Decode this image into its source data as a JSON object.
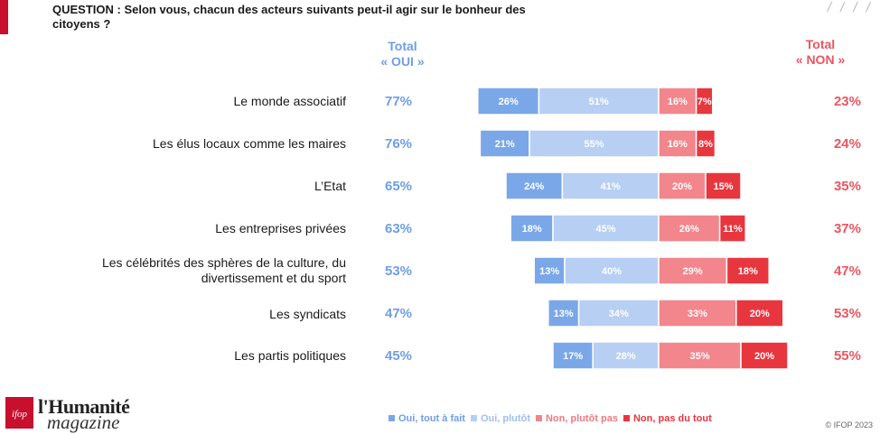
{
  "header": {
    "question": "QUESTION : Selon vous, chacun des acteurs suivants peut-il agir sur le bonheur des citoyens ?",
    "total_oui_line1": "Total",
    "total_oui_line2": "« OUI »",
    "total_non_line1": "Total",
    "total_non_line2": "« NON »",
    "decor": "/ / / /"
  },
  "colors": {
    "oui_tout_a_fait": "#7aa7e8",
    "oui_plutot": "#b7cff3",
    "non_plutot_pas": "#f2868c",
    "non_pas_du_tout": "#e8363f",
    "total_oui": "#6f9ee6",
    "total_non": "#ec5560",
    "brand_red": "#c8102e"
  },
  "chart_data": {
    "type": "bar",
    "orientation": "horizontal-diverging",
    "categories": [
      "Le monde associatif",
      "Les élus locaux comme les maires",
      "L’Etat",
      "Les entreprises privées",
      "Les célébrités des sphères de la culture, du divertissement et du sport",
      "Les syndicats",
      "Les partis politiques"
    ],
    "series": [
      {
        "name": "Oui, tout à fait",
        "values": [
          26,
          21,
          24,
          18,
          13,
          13,
          17
        ],
        "labels": [
          "26%",
          "21%",
          "24%",
          "18%",
          "13%",
          "13%",
          "17%"
        ]
      },
      {
        "name": "Oui, plutôt",
        "values": [
          51,
          55,
          41,
          45,
          40,
          34,
          28
        ],
        "labels": [
          "51%",
          "55%",
          "41%",
          "45%",
          "40%",
          "34%",
          "28%"
        ]
      },
      {
        "name": "Non, plutôt pas",
        "values": [
          16,
          16,
          20,
          26,
          29,
          33,
          35
        ],
        "labels": [
          "16%",
          "16%",
          "20%",
          "26%",
          "29%",
          "33%",
          "35%"
        ]
      },
      {
        "name": "Non, pas du tout",
        "values": [
          7,
          8,
          15,
          11,
          18,
          20,
          20
        ],
        "labels": [
          "7%",
          "8%",
          "15%",
          "11%",
          "18%",
          "20%",
          "20%"
        ]
      }
    ],
    "total_oui": [
      "77%",
      "76%",
      "65%",
      "63%",
      "53%",
      "47%",
      "45%"
    ],
    "total_non": [
      "23%",
      "24%",
      "35%",
      "37%",
      "47%",
      "53%",
      "55%"
    ],
    "legend_position": "bottom"
  },
  "rows": [
    {
      "label": "Le monde associatif",
      "oui": "77%",
      "non": "23%"
    },
    {
      "label": "Les élus locaux comme les maires",
      "oui": "76%",
      "non": "24%"
    },
    {
      "label": "L’Etat",
      "oui": "65%",
      "non": "35%"
    },
    {
      "label": "Les entreprises privées",
      "oui": "63%",
      "non": "37%"
    },
    {
      "label": "Les célébrités des sphères de la culture, du divertissement et du sport",
      "oui": "53%",
      "non": "47%"
    },
    {
      "label": "Les syndicats",
      "oui": "47%",
      "non": "53%"
    },
    {
      "label": "Les partis politiques",
      "oui": "45%",
      "non": "55%"
    }
  ],
  "legend": {
    "items": [
      "Oui, tout à fait",
      "Oui, plutôt",
      "Non, plutôt pas",
      "Non, pas du tout"
    ]
  },
  "footer": {
    "logo_text": "ifop",
    "brand_line1": "l'Humanité",
    "brand_line2": "magazine",
    "copyright": "© IFOP 2023"
  }
}
